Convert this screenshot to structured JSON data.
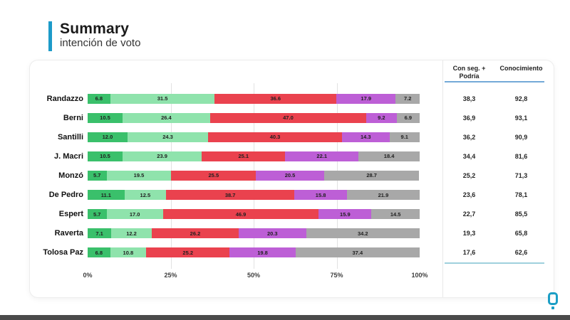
{
  "header": {
    "title": "Summary",
    "subtitle": "intención de voto"
  },
  "chart_data": {
    "type": "bar",
    "stacked": true,
    "orientation": "horizontal",
    "title": "",
    "xlabel": "",
    "ylabel": "",
    "xlim": [
      0,
      100
    ],
    "x_ticks": [
      "0%",
      "25%",
      "50%",
      "75%",
      "100%"
    ],
    "grid": "vertical gridlines at 25, 50, 75",
    "legend": "none",
    "categories": [
      "Randazzo",
      "Berni",
      "Santilli",
      "J. Macri",
      "Monzó",
      "De Pedro",
      "Espert",
      "Raverta",
      "Tolosa Paz"
    ],
    "series": [
      {
        "name": "dark-green",
        "color": "#3ac06b",
        "values": [
          6.8,
          10.5,
          12.0,
          10.5,
          5.7,
          11.1,
          5.7,
          7.1,
          6.8
        ]
      },
      {
        "name": "light-green",
        "color": "#8fe3ac",
        "values": [
          31.5,
          26.4,
          24.3,
          23.9,
          19.5,
          12.5,
          17.0,
          12.2,
          10.8
        ]
      },
      {
        "name": "red",
        "color": "#ea424e",
        "values": [
          36.6,
          47.0,
          40.3,
          25.1,
          25.5,
          38.7,
          46.9,
          26.2,
          25.2
        ]
      },
      {
        "name": "purple",
        "color": "#bd5fd6",
        "values": [
          17.9,
          9.2,
          14.3,
          22.1,
          20.5,
          15.8,
          15.9,
          20.3,
          19.8
        ]
      },
      {
        "name": "gray",
        "color": "#a8a8a8",
        "values": [
          7.2,
          6.9,
          9.1,
          18.4,
          28.7,
          21.9,
          14.5,
          34.2,
          37.4
        ]
      }
    ]
  },
  "table": {
    "columns": [
      "Con seg. + Podría",
      "Conocimiento"
    ],
    "rows": [
      [
        "38,3",
        "92,8"
      ],
      [
        "36,9",
        "93,1"
      ],
      [
        "36,2",
        "90,9"
      ],
      [
        "34,4",
        "81,6"
      ],
      [
        "25,2",
        "71,3"
      ],
      [
        "23,6",
        "78,1"
      ],
      [
        "22,7",
        "85,5"
      ],
      [
        "19,3",
        "65,8"
      ],
      [
        "17,6",
        "62,6"
      ]
    ]
  },
  "colors": {
    "accent_blue": "#1d9bc9",
    "logo_teal": "#1b9ec5",
    "table_rule_blue": "#74a9d8",
    "footer_gray": "#4a4a4a"
  },
  "footer": {
    "logo": "q-logo"
  }
}
